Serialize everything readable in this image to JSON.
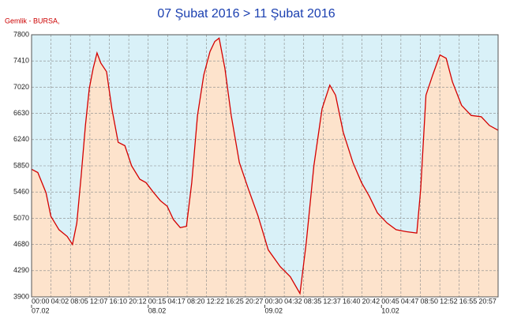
{
  "chart_data": {
    "type": "area",
    "title": "07 Şubat 2016 > 11 Şubat 2016",
    "subtitle": "Gemlik - BURSA,",
    "xlim": [
      0,
      97
    ],
    "ylim": [
      3900,
      7800
    ],
    "yticks": [
      3900,
      4290,
      4680,
      5070,
      5460,
      5850,
      6240,
      6630,
      7020,
      7410,
      7800
    ],
    "xticks": [
      {
        "value": 0,
        "label": "00:00"
      },
      {
        "value": 4.04,
        "label": "04:02"
      },
      {
        "value": 8.08,
        "label": "08:05"
      },
      {
        "value": 12.13,
        "label": "12:07"
      },
      {
        "value": 16.17,
        "label": "16:10"
      },
      {
        "value": 20.21,
        "label": "20:12"
      },
      {
        "value": 24.25,
        "label": "00:15"
      },
      {
        "value": 28.29,
        "label": "04:17"
      },
      {
        "value": 32.33,
        "label": "08:20"
      },
      {
        "value": 36.38,
        "label": "12:22"
      },
      {
        "value": 40.42,
        "label": "16:25"
      },
      {
        "value": 44.46,
        "label": "20:27"
      },
      {
        "value": 48.5,
        "label": "00:30"
      },
      {
        "value": 52.54,
        "label": "04:32"
      },
      {
        "value": 56.58,
        "label": "08:35"
      },
      {
        "value": 60.63,
        "label": "12:37"
      },
      {
        "value": 64.67,
        "label": "16:40"
      },
      {
        "value": 68.71,
        "label": "20:42"
      },
      {
        "value": 72.75,
        "label": "00:45"
      },
      {
        "value": 76.79,
        "label": "04:47"
      },
      {
        "value": 80.83,
        "label": "08:50"
      },
      {
        "value": 84.88,
        "label": "12:52"
      },
      {
        "value": 88.92,
        "label": "16:55"
      },
      {
        "value": 92.96,
        "label": "20:57"
      }
    ],
    "date_ticks": [
      {
        "value": 0,
        "label": "07.02"
      },
      {
        "value": 24.25,
        "label": "08.02"
      },
      {
        "value": 48.5,
        "label": "09.02"
      },
      {
        "value": 72.75,
        "label": "10.02"
      }
    ],
    "grid": true,
    "color": "#d40000",
    "fill_color": "#fde3cc",
    "background_color": "#d9f1f8",
    "x": [
      0,
      1.3,
      3,
      4,
      5.7,
      7.4,
      8.5,
      9.4,
      10.3,
      11.2,
      12,
      12.8,
      13.6,
      14.4,
      15.6,
      16.7,
      18,
      19.4,
      20.8,
      22.5,
      23.8,
      25.4,
      26.8,
      28.2,
      29.5,
      30.9,
      32.2,
      33.3,
      34.5,
      35.8,
      37.1,
      38.1,
      39,
      40.2,
      41.5,
      43.2,
      45.1,
      47.1,
      49.2,
      51.7,
      53.8,
      55.8,
      57.1,
      58.7,
      60.4,
      62,
      63.2,
      64.8,
      66.8,
      68.6,
      70.2,
      71.9,
      73.9,
      75.8,
      77.9,
      80.1,
      80.9,
      82,
      83.4,
      84.9,
      86.2,
      87.5,
      89.4,
      91.4,
      93.5,
      95.2,
      97
    ],
    "values": [
      5800,
      5750,
      5450,
      5100,
      4900,
      4800,
      4680,
      5000,
      5700,
      6450,
      7000,
      7300,
      7530,
      7380,
      7250,
      6700,
      6200,
      6150,
      5850,
      5650,
      5600,
      5450,
      5330,
      5250,
      5050,
      4930,
      4950,
      5600,
      6600,
      7200,
      7550,
      7700,
      7750,
      7300,
      6600,
      5900,
      5500,
      5100,
      4600,
      4350,
      4200,
      3950,
      4700,
      5850,
      6700,
      7050,
      6900,
      6350,
      5900,
      5600,
      5400,
      5150,
      5000,
      4900,
      4870,
      4850,
      5500,
      6900,
      7200,
      7500,
      7450,
      7100,
      6750,
      6600,
      6580,
      6450,
      6380
    ]
  }
}
